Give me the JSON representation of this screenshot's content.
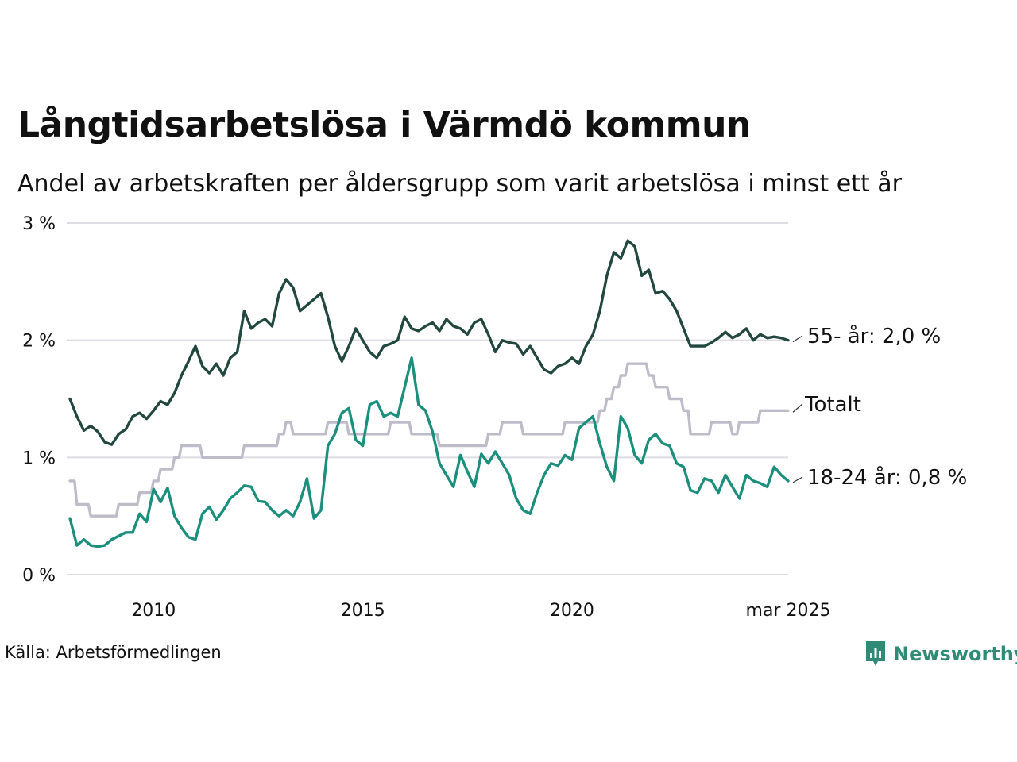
{
  "title": "Långtidsarbetslösa i Värmdö kommun",
  "subtitle": "Andel av arbetskraften per åldersgrupp som varit arbetslösa i minst ett år",
  "source": "Källa: Arbetsförmedlingen",
  "brand": {
    "name": "Newsworthy",
    "icon": "newsworthy-logo-icon",
    "color": "#2f8a76"
  },
  "chart_data": {
    "type": "line",
    "x_range": [
      "2008-01",
      "2025-03"
    ],
    "ylim": [
      0,
      3
    ],
    "y_ticks": [
      {
        "value": 0,
        "label": "0 %"
      },
      {
        "value": 1,
        "label": "1 %"
      },
      {
        "value": 2,
        "label": "2 %"
      },
      {
        "value": 3,
        "label": "3 %"
      }
    ],
    "x_ticks": [
      {
        "date": "2010-01",
        "label": "2010"
      },
      {
        "date": "2015-01",
        "label": "2015"
      },
      {
        "date": "2020-01",
        "label": "2020"
      },
      {
        "date": "2025-03",
        "label": "mar 2025"
      }
    ],
    "grid": true,
    "legend": "end-of-line labels",
    "series": [
      {
        "key": "55",
        "end_label": "55- år: 2,0 %",
        "color": "#22473f",
        "points": [
          [
            "2008-01",
            1.5
          ],
          [
            "2008-03",
            1.35
          ],
          [
            "2008-05",
            1.23
          ],
          [
            "2008-07",
            1.27
          ],
          [
            "2008-09",
            1.22
          ],
          [
            "2008-11",
            1.13
          ],
          [
            "2009-01",
            1.11
          ],
          [
            "2009-03",
            1.2
          ],
          [
            "2009-05",
            1.24
          ],
          [
            "2009-07",
            1.35
          ],
          [
            "2009-09",
            1.38
          ],
          [
            "2009-11",
            1.33
          ],
          [
            "2010-01",
            1.4
          ],
          [
            "2010-03",
            1.48
          ],
          [
            "2010-05",
            1.45
          ],
          [
            "2010-07",
            1.55
          ],
          [
            "2010-09",
            1.7
          ],
          [
            "2010-11",
            1.82
          ],
          [
            "2011-01",
            1.95
          ],
          [
            "2011-03",
            1.78
          ],
          [
            "2011-05",
            1.72
          ],
          [
            "2011-07",
            1.8
          ],
          [
            "2011-09",
            1.7
          ],
          [
            "2011-11",
            1.85
          ],
          [
            "2012-01",
            1.9
          ],
          [
            "2012-03",
            2.25
          ],
          [
            "2012-05",
            2.1
          ],
          [
            "2012-07",
            2.15
          ],
          [
            "2012-09",
            2.18
          ],
          [
            "2012-11",
            2.12
          ],
          [
            "2013-01",
            2.4
          ],
          [
            "2013-03",
            2.52
          ],
          [
            "2013-05",
            2.45
          ],
          [
            "2013-07",
            2.25
          ],
          [
            "2013-09",
            2.3
          ],
          [
            "2013-11",
            2.35
          ],
          [
            "2014-01",
            2.4
          ],
          [
            "2014-03",
            2.2
          ],
          [
            "2014-05",
            1.95
          ],
          [
            "2014-07",
            1.82
          ],
          [
            "2014-09",
            1.95
          ],
          [
            "2014-11",
            2.1
          ],
          [
            "2015-01",
            2.0
          ],
          [
            "2015-03",
            1.9
          ],
          [
            "2015-05",
            1.85
          ],
          [
            "2015-07",
            1.95
          ],
          [
            "2015-09",
            1.97
          ],
          [
            "2015-11",
            2.0
          ],
          [
            "2016-01",
            2.2
          ],
          [
            "2016-03",
            2.1
          ],
          [
            "2016-05",
            2.08
          ],
          [
            "2016-07",
            2.12
          ],
          [
            "2016-09",
            2.15
          ],
          [
            "2016-11",
            2.08
          ],
          [
            "2017-01",
            2.18
          ],
          [
            "2017-03",
            2.12
          ],
          [
            "2017-05",
            2.1
          ],
          [
            "2017-07",
            2.05
          ],
          [
            "2017-09",
            2.15
          ],
          [
            "2017-11",
            2.18
          ],
          [
            "2018-01",
            2.05
          ],
          [
            "2018-03",
            1.9
          ],
          [
            "2018-05",
            2.0
          ],
          [
            "2018-07",
            1.98
          ],
          [
            "2018-09",
            1.97
          ],
          [
            "2018-11",
            1.88
          ],
          [
            "2019-01",
            1.95
          ],
          [
            "2019-03",
            1.85
          ],
          [
            "2019-05",
            1.75
          ],
          [
            "2019-07",
            1.72
          ],
          [
            "2019-09",
            1.78
          ],
          [
            "2019-11",
            1.8
          ],
          [
            "2020-01",
            1.85
          ],
          [
            "2020-03",
            1.8
          ],
          [
            "2020-05",
            1.95
          ],
          [
            "2020-07",
            2.05
          ],
          [
            "2020-09",
            2.25
          ],
          [
            "2020-11",
            2.55
          ],
          [
            "2021-01",
            2.75
          ],
          [
            "2021-03",
            2.7
          ],
          [
            "2021-05",
            2.85
          ],
          [
            "2021-07",
            2.8
          ],
          [
            "2021-09",
            2.55
          ],
          [
            "2021-11",
            2.6
          ],
          [
            "2022-01",
            2.4
          ],
          [
            "2022-03",
            2.42
          ],
          [
            "2022-05",
            2.35
          ],
          [
            "2022-07",
            2.25
          ],
          [
            "2022-09",
            2.1
          ],
          [
            "2022-11",
            1.95
          ],
          [
            "2023-01",
            1.95
          ],
          [
            "2023-03",
            1.95
          ],
          [
            "2023-05",
            1.98
          ],
          [
            "2023-07",
            2.02
          ],
          [
            "2023-09",
            2.07
          ],
          [
            "2023-11",
            2.02
          ],
          [
            "2024-01",
            2.05
          ],
          [
            "2024-03",
            2.1
          ],
          [
            "2024-05",
            2.0
          ],
          [
            "2024-07",
            2.05
          ],
          [
            "2024-09",
            2.02
          ],
          [
            "2024-11",
            2.03
          ],
          [
            "2025-01",
            2.02
          ],
          [
            "2025-03",
            2.0
          ]
        ]
      },
      {
        "key": "total",
        "end_label": "Totalt",
        "color": "#bfbcc9",
        "points": [
          [
            "2008-01",
            0.8
          ],
          [
            "2008-03",
            0.6
          ],
          [
            "2008-07",
            0.5
          ],
          [
            "2009-01",
            0.5
          ],
          [
            "2009-03",
            0.6
          ],
          [
            "2009-09",
            0.7
          ],
          [
            "2010-01",
            0.8
          ],
          [
            "2010-03",
            0.9
          ],
          [
            "2010-07",
            1.0
          ],
          [
            "2010-09",
            1.1
          ],
          [
            "2011-03",
            1.0
          ],
          [
            "2012-01",
            1.0
          ],
          [
            "2012-03",
            1.1
          ],
          [
            "2012-11",
            1.1
          ],
          [
            "2013-01",
            1.2
          ],
          [
            "2013-03",
            1.3
          ],
          [
            "2013-05",
            1.2
          ],
          [
            "2013-11",
            1.2
          ],
          [
            "2014-01",
            1.2
          ],
          [
            "2014-03",
            1.3
          ],
          [
            "2014-07",
            1.3
          ],
          [
            "2014-09",
            1.2
          ],
          [
            "2015-01",
            1.2
          ],
          [
            "2015-07",
            1.2
          ],
          [
            "2015-09",
            1.3
          ],
          [
            "2016-03",
            1.2
          ],
          [
            "2016-09",
            1.2
          ],
          [
            "2016-11",
            1.1
          ],
          [
            "2017-11",
            1.1
          ],
          [
            "2018-01",
            1.2
          ],
          [
            "2018-05",
            1.3
          ],
          [
            "2018-09",
            1.3
          ],
          [
            "2018-11",
            1.2
          ],
          [
            "2019-09",
            1.2
          ],
          [
            "2019-11",
            1.3
          ],
          [
            "2020-09",
            1.4
          ],
          [
            "2020-11",
            1.5
          ],
          [
            "2021-01",
            1.6
          ],
          [
            "2021-03",
            1.7
          ],
          [
            "2021-05",
            1.8
          ],
          [
            "2021-09",
            1.8
          ],
          [
            "2021-11",
            1.7
          ],
          [
            "2022-01",
            1.6
          ],
          [
            "2022-05",
            1.5
          ],
          [
            "2022-09",
            1.4
          ],
          [
            "2022-11",
            1.2
          ],
          [
            "2023-05",
            1.3
          ],
          [
            "2023-11",
            1.2
          ],
          [
            "2024-01",
            1.3
          ],
          [
            "2024-05",
            1.3
          ],
          [
            "2024-07",
            1.4
          ],
          [
            "2025-03",
            1.4
          ]
        ]
      },
      {
        "key": "18-24",
        "end_label": "18-24 år: 0,8 %",
        "color": "#1b8f7c",
        "points": [
          [
            "2008-01",
            0.48
          ],
          [
            "2008-03",
            0.25
          ],
          [
            "2008-05",
            0.3
          ],
          [
            "2008-07",
            0.25
          ],
          [
            "2008-09",
            0.24
          ],
          [
            "2008-11",
            0.25
          ],
          [
            "2009-01",
            0.3
          ],
          [
            "2009-03",
            0.33
          ],
          [
            "2009-05",
            0.36
          ],
          [
            "2009-07",
            0.36
          ],
          [
            "2009-09",
            0.52
          ],
          [
            "2009-11",
            0.45
          ],
          [
            "2010-01",
            0.73
          ],
          [
            "2010-03",
            0.62
          ],
          [
            "2010-05",
            0.74
          ],
          [
            "2010-07",
            0.5
          ],
          [
            "2010-09",
            0.4
          ],
          [
            "2010-11",
            0.32
          ],
          [
            "2011-01",
            0.3
          ],
          [
            "2011-03",
            0.52
          ],
          [
            "2011-05",
            0.58
          ],
          [
            "2011-07",
            0.47
          ],
          [
            "2011-09",
            0.55
          ],
          [
            "2011-11",
            0.65
          ],
          [
            "2012-01",
            0.7
          ],
          [
            "2012-03",
            0.76
          ],
          [
            "2012-05",
            0.75
          ],
          [
            "2012-07",
            0.63
          ],
          [
            "2012-09",
            0.62
          ],
          [
            "2012-11",
            0.55
          ],
          [
            "2013-01",
            0.5
          ],
          [
            "2013-03",
            0.55
          ],
          [
            "2013-05",
            0.5
          ],
          [
            "2013-07",
            0.62
          ],
          [
            "2013-09",
            0.82
          ],
          [
            "2013-11",
            0.48
          ],
          [
            "2014-01",
            0.55
          ],
          [
            "2014-03",
            1.1
          ],
          [
            "2014-05",
            1.2
          ],
          [
            "2014-07",
            1.38
          ],
          [
            "2014-09",
            1.42
          ],
          [
            "2014-11",
            1.15
          ],
          [
            "2015-01",
            1.1
          ],
          [
            "2015-03",
            1.45
          ],
          [
            "2015-05",
            1.48
          ],
          [
            "2015-07",
            1.35
          ],
          [
            "2015-09",
            1.38
          ],
          [
            "2015-11",
            1.35
          ],
          [
            "2016-01",
            1.6
          ],
          [
            "2016-03",
            1.85
          ],
          [
            "2016-05",
            1.45
          ],
          [
            "2016-07",
            1.4
          ],
          [
            "2016-09",
            1.22
          ],
          [
            "2016-11",
            0.95
          ],
          [
            "2017-01",
            0.85
          ],
          [
            "2017-03",
            0.75
          ],
          [
            "2017-05",
            1.02
          ],
          [
            "2017-07",
            0.88
          ],
          [
            "2017-09",
            0.75
          ],
          [
            "2017-11",
            1.03
          ],
          [
            "2018-01",
            0.95
          ],
          [
            "2018-03",
            1.05
          ],
          [
            "2018-05",
            0.95
          ],
          [
            "2018-07",
            0.85
          ],
          [
            "2018-09",
            0.65
          ],
          [
            "2018-11",
            0.55
          ],
          [
            "2019-01",
            0.52
          ],
          [
            "2019-03",
            0.7
          ],
          [
            "2019-05",
            0.85
          ],
          [
            "2019-07",
            0.95
          ],
          [
            "2019-09",
            0.93
          ],
          [
            "2019-11",
            1.02
          ],
          [
            "2020-01",
            0.98
          ],
          [
            "2020-03",
            1.25
          ],
          [
            "2020-05",
            1.3
          ],
          [
            "2020-07",
            1.35
          ],
          [
            "2020-09",
            1.12
          ],
          [
            "2020-11",
            0.92
          ],
          [
            "2021-01",
            0.8
          ],
          [
            "2021-03",
            1.35
          ],
          [
            "2021-05",
            1.25
          ],
          [
            "2021-07",
            1.02
          ],
          [
            "2021-09",
            0.95
          ],
          [
            "2021-11",
            1.15
          ],
          [
            "2022-01",
            1.2
          ],
          [
            "2022-03",
            1.12
          ],
          [
            "2022-05",
            1.1
          ],
          [
            "2022-07",
            0.95
          ],
          [
            "2022-09",
            0.92
          ],
          [
            "2022-11",
            0.72
          ],
          [
            "2023-01",
            0.7
          ],
          [
            "2023-03",
            0.82
          ],
          [
            "2023-05",
            0.8
          ],
          [
            "2023-07",
            0.7
          ],
          [
            "2023-09",
            0.85
          ],
          [
            "2023-11",
            0.75
          ],
          [
            "2024-01",
            0.65
          ],
          [
            "2024-03",
            0.85
          ],
          [
            "2024-05",
            0.8
          ],
          [
            "2024-07",
            0.78
          ],
          [
            "2024-09",
            0.75
          ],
          [
            "2024-11",
            0.92
          ],
          [
            "2025-01",
            0.85
          ],
          [
            "2025-03",
            0.8
          ]
        ]
      }
    ]
  }
}
